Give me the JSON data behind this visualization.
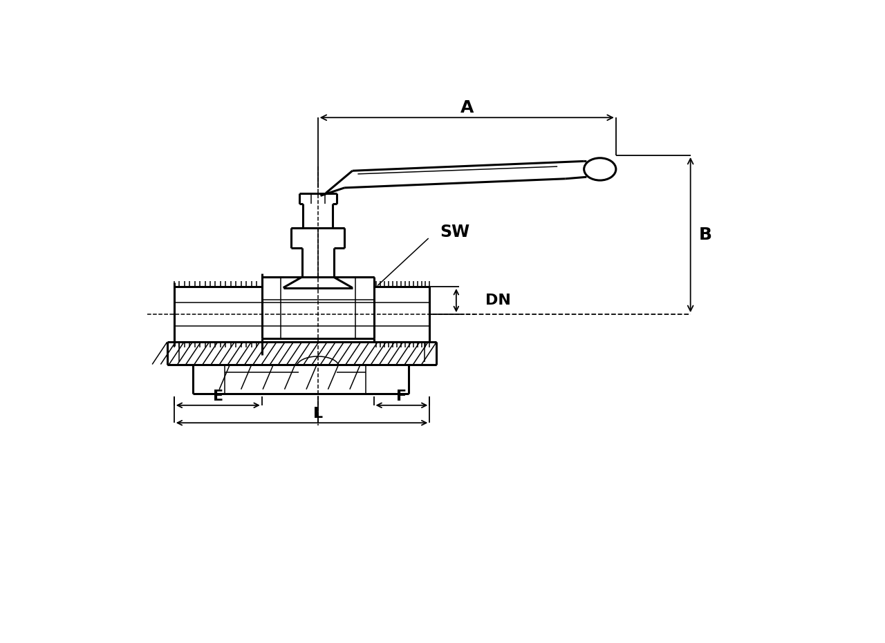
{
  "bg_color": "#ffffff",
  "line_color": "#000000",
  "labels": {
    "A": "A",
    "B": "B",
    "SW": "SW",
    "DN": "DN",
    "E": "E",
    "F": "F",
    "L": "L"
  },
  "font_size_labels": 18
}
